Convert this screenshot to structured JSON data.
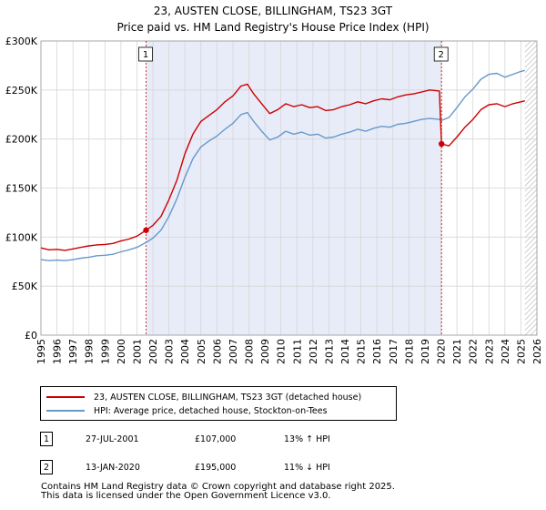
{
  "chart_data": {
    "type": "line",
    "title": "23, AUSTEN CLOSE, BILLINGHAM, TS23 3GT",
    "subtitle": "Price paid vs. HM Land Registry's House Price Index (HPI)",
    "xlim": [
      1995,
      2026
    ],
    "ylim": [
      0,
      300000
    ],
    "x_ticks": [
      1995,
      1996,
      1997,
      1998,
      1999,
      2000,
      2001,
      2002,
      2003,
      2004,
      2005,
      2006,
      2007,
      2008,
      2009,
      2010,
      2011,
      2012,
      2013,
      2014,
      2015,
      2016,
      2017,
      2018,
      2019,
      2020,
      2021,
      2022,
      2023,
      2024,
      2025,
      2026
    ],
    "y_ticks": [
      {
        "value": 0,
        "label": "£0"
      },
      {
        "value": 50000,
        "label": "£50K"
      },
      {
        "value": 100000,
        "label": "£100K"
      },
      {
        "value": 150000,
        "label": "£150K"
      },
      {
        "value": 200000,
        "label": "£200K"
      },
      {
        "value": 250000,
        "label": "£250K"
      },
      {
        "value": 300000,
        "label": "£300K"
      }
    ],
    "shaded_range": [
      2001.57,
      2020.04
    ],
    "hatch_from": 2025.25,
    "series": [
      {
        "name": "23, AUSTEN CLOSE, BILLINGHAM, TS23 3GT (detached house)",
        "color": "#cc0000",
        "points": [
          [
            1995.0,
            89000
          ],
          [
            1995.5,
            87000
          ],
          [
            1996.0,
            87500
          ],
          [
            1996.5,
            86500
          ],
          [
            1997.0,
            88000
          ],
          [
            1997.5,
            89500
          ],
          [
            1998.0,
            91000
          ],
          [
            1998.5,
            92000
          ],
          [
            1999.0,
            92500
          ],
          [
            1999.5,
            93500
          ],
          [
            2000.0,
            96000
          ],
          [
            2000.5,
            98000
          ],
          [
            2001.0,
            101000
          ],
          [
            2001.57,
            107000
          ],
          [
            2002.0,
            112000
          ],
          [
            2002.5,
            121000
          ],
          [
            2003.0,
            138000
          ],
          [
            2003.5,
            158000
          ],
          [
            2004.0,
            185000
          ],
          [
            2004.5,
            205000
          ],
          [
            2005.0,
            218000
          ],
          [
            2005.5,
            224000
          ],
          [
            2006.0,
            230000
          ],
          [
            2006.5,
            238000
          ],
          [
            2007.0,
            244000
          ],
          [
            2007.5,
            254000
          ],
          [
            2007.9,
            256000
          ],
          [
            2008.3,
            246000
          ],
          [
            2008.8,
            236000
          ],
          [
            2009.3,
            226000
          ],
          [
            2009.8,
            230000
          ],
          [
            2010.3,
            236000
          ],
          [
            2010.8,
            233000
          ],
          [
            2011.3,
            235000
          ],
          [
            2011.8,
            232000
          ],
          [
            2012.3,
            233000
          ],
          [
            2012.8,
            229000
          ],
          [
            2013.3,
            230000
          ],
          [
            2013.8,
            233000
          ],
          [
            2014.3,
            235000
          ],
          [
            2014.8,
            238000
          ],
          [
            2015.3,
            236000
          ],
          [
            2015.8,
            239000
          ],
          [
            2016.3,
            241000
          ],
          [
            2016.8,
            240000
          ],
          [
            2017.3,
            243000
          ],
          [
            2017.8,
            245000
          ],
          [
            2018.3,
            246000
          ],
          [
            2018.8,
            248000
          ],
          [
            2019.3,
            250000
          ],
          [
            2019.9,
            249000
          ],
          [
            2020.04,
            195000
          ],
          [
            2020.5,
            193000
          ],
          [
            2021.0,
            202000
          ],
          [
            2021.5,
            212000
          ],
          [
            2022.0,
            220000
          ],
          [
            2022.5,
            230000
          ],
          [
            2023.0,
            235000
          ],
          [
            2023.5,
            236000
          ],
          [
            2024.0,
            233000
          ],
          [
            2024.5,
            236000
          ],
          [
            2025.0,
            238000
          ],
          [
            2025.25,
            239000
          ]
        ]
      },
      {
        "name": "HPI: Average price, detached house, Stockton-on-Tees",
        "color": "#6699cc",
        "points": [
          [
            1995.0,
            77000
          ],
          [
            1995.5,
            76000
          ],
          [
            1996.0,
            76500
          ],
          [
            1996.5,
            76000
          ],
          [
            1997.0,
            77000
          ],
          [
            1997.5,
            78500
          ],
          [
            1998.0,
            79500
          ],
          [
            1998.5,
            81000
          ],
          [
            1999.0,
            81500
          ],
          [
            1999.5,
            82500
          ],
          [
            2000.0,
            85000
          ],
          [
            2000.5,
            87000
          ],
          [
            2001.0,
            89500
          ],
          [
            2001.57,
            94500
          ],
          [
            2002.0,
            99000
          ],
          [
            2002.5,
            107000
          ],
          [
            2003.0,
            121000
          ],
          [
            2003.5,
            139000
          ],
          [
            2004.0,
            161000
          ],
          [
            2004.5,
            180000
          ],
          [
            2005.0,
            192000
          ],
          [
            2005.5,
            198000
          ],
          [
            2006.0,
            203000
          ],
          [
            2006.5,
            210000
          ],
          [
            2007.0,
            216000
          ],
          [
            2007.5,
            225000
          ],
          [
            2007.9,
            227000
          ],
          [
            2008.3,
            218000
          ],
          [
            2008.8,
            208000
          ],
          [
            2009.3,
            199000
          ],
          [
            2009.8,
            202000
          ],
          [
            2010.3,
            208000
          ],
          [
            2010.8,
            205000
          ],
          [
            2011.3,
            207000
          ],
          [
            2011.8,
            204000
          ],
          [
            2012.3,
            205000
          ],
          [
            2012.8,
            201000
          ],
          [
            2013.3,
            202000
          ],
          [
            2013.8,
            205000
          ],
          [
            2014.3,
            207000
          ],
          [
            2014.8,
            210000
          ],
          [
            2015.3,
            208000
          ],
          [
            2015.8,
            211000
          ],
          [
            2016.3,
            213000
          ],
          [
            2016.8,
            212000
          ],
          [
            2017.3,
            215000
          ],
          [
            2017.8,
            216000
          ],
          [
            2018.3,
            218000
          ],
          [
            2018.8,
            220000
          ],
          [
            2019.3,
            221000
          ],
          [
            2019.9,
            220000
          ],
          [
            2020.04,
            219000
          ],
          [
            2020.5,
            222000
          ],
          [
            2021.0,
            232000
          ],
          [
            2021.5,
            243000
          ],
          [
            2022.0,
            251000
          ],
          [
            2022.5,
            261000
          ],
          [
            2023.0,
            266000
          ],
          [
            2023.5,
            267000
          ],
          [
            2024.0,
            263000
          ],
          [
            2024.5,
            266000
          ],
          [
            2025.0,
            269000
          ],
          [
            2025.25,
            270000
          ]
        ]
      }
    ],
    "sales": [
      {
        "id": "1",
        "year": 2001.57,
        "price": 107000
      },
      {
        "id": "2",
        "year": 2020.04,
        "price": 195000
      }
    ]
  },
  "legend": {
    "property": "23, AUSTEN CLOSE, BILLINGHAM, TS23 3GT (detached house)",
    "hpi": "HPI: Average price, detached house, Stockton-on-Tees"
  },
  "transactions": [
    {
      "id": "1",
      "date": "27-JUL-2001",
      "price": "£107,000",
      "delta": "13% ↑ HPI"
    },
    {
      "id": "2",
      "date": "13-JAN-2020",
      "price": "£195,000",
      "delta": "11% ↓ HPI"
    }
  ],
  "footer": {
    "line1": "Contains HM Land Registry data © Crown copyright and database right 2025.",
    "line2": "This data is licensed under the Open Government Licence v3.0."
  },
  "colors": {
    "property": "#cc0000",
    "hpi": "#6699cc",
    "shade": "#e8ecf8",
    "grid": "#d6d6d6"
  }
}
